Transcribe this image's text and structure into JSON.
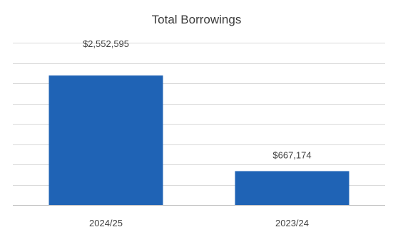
{
  "chart_data": {
    "type": "bar",
    "title": "Total Borrowings",
    "xlabel": "",
    "ylabel": "",
    "categories": [
      "2024/25",
      "2023/24"
    ],
    "values": [
      2552595,
      667174
    ],
    "data_labels": [
      "$2,552,595",
      "$667,174"
    ],
    "ylim": [
      0,
      3200000
    ],
    "gridlines": [
      0,
      400000,
      800000,
      1200000,
      1600000,
      2000000,
      2400000,
      2800000,
      3200000
    ],
    "grid": true,
    "legend": "none",
    "bar_color": "#1f63b5",
    "grid_color": "#d9d9d9",
    "text_color": "#404040"
  }
}
